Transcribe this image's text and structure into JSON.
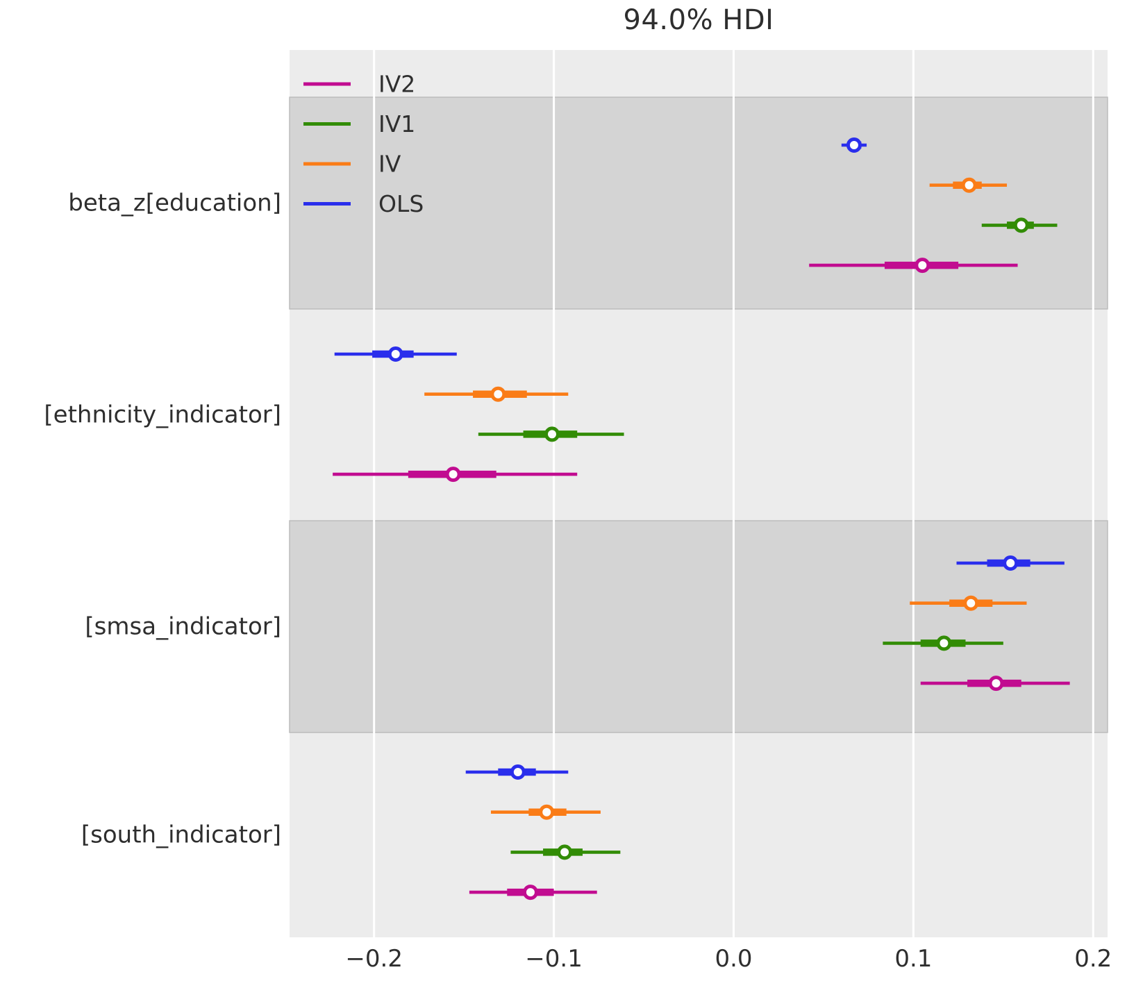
{
  "title": "94.0% HDI",
  "chart_data": {
    "type": "forest",
    "title": "94.0% HDI",
    "xlim": [
      -0.247,
      0.208
    ],
    "x_ticks": [
      -0.2,
      -0.1,
      0.0,
      0.1,
      0.2
    ],
    "x_tick_labels": [
      "−0.2",
      "−0.1",
      "0.0",
      "0.1",
      "0.2"
    ],
    "grid": "vertical-white-lines",
    "legend_position": "upper-left-inside",
    "legend": [
      {
        "label": "IV2",
        "color": "#c10c90"
      },
      {
        "label": "IV1",
        "color": "#328c06"
      },
      {
        "label": "IV",
        "color": "#fa7c17"
      },
      {
        "label": "OLS",
        "color": "#2a2eec"
      }
    ],
    "colors": {
      "OLS": "#2a2eec",
      "IV": "#fa7c17",
      "IV1": "#328c06",
      "IV2": "#c10c90"
    },
    "row_order_top_to_bottom": [
      "OLS",
      "IV",
      "IV1",
      "IV2"
    ],
    "groups": [
      {
        "label": "beta_z[education]",
        "shaded": true,
        "rows": [
          {
            "model": "OLS",
            "mean": 0.067,
            "hdi": [
              0.06,
              0.074
            ],
            "quartile": [
              0.064,
              0.071
            ]
          },
          {
            "model": "IV",
            "mean": 0.131,
            "hdi": [
              0.109,
              0.152
            ],
            "quartile": [
              0.122,
              0.138
            ]
          },
          {
            "model": "IV1",
            "mean": 0.16,
            "hdi": [
              0.138,
              0.18
            ],
            "quartile": [
              0.152,
              0.167
            ]
          },
          {
            "model": "IV2",
            "mean": 0.105,
            "hdi": [
              0.042,
              0.158
            ],
            "quartile": [
              0.084,
              0.125
            ]
          }
        ]
      },
      {
        "label": "[ethnicity_indicator]",
        "shaded": false,
        "rows": [
          {
            "model": "OLS",
            "mean": -0.188,
            "hdi": [
              -0.222,
              -0.154
            ],
            "quartile": [
              -0.201,
              -0.178
            ]
          },
          {
            "model": "IV",
            "mean": -0.131,
            "hdi": [
              -0.172,
              -0.092
            ],
            "quartile": [
              -0.145,
              -0.115
            ]
          },
          {
            "model": "IV1",
            "mean": -0.101,
            "hdi": [
              -0.142,
              -0.061
            ],
            "quartile": [
              -0.117,
              -0.087
            ]
          },
          {
            "model": "IV2",
            "mean": -0.156,
            "hdi": [
              -0.223,
              -0.087
            ],
            "quartile": [
              -0.181,
              -0.132
            ]
          }
        ]
      },
      {
        "label": "[smsa_indicator]",
        "shaded": true,
        "rows": [
          {
            "model": "OLS",
            "mean": 0.154,
            "hdi": [
              0.124,
              0.184
            ],
            "quartile": [
              0.141,
              0.165
            ]
          },
          {
            "model": "IV",
            "mean": 0.132,
            "hdi": [
              0.098,
              0.163
            ],
            "quartile": [
              0.12,
              0.144
            ]
          },
          {
            "model": "IV1",
            "mean": 0.117,
            "hdi": [
              0.083,
              0.15
            ],
            "quartile": [
              0.104,
              0.129
            ]
          },
          {
            "model": "IV2",
            "mean": 0.146,
            "hdi": [
              0.104,
              0.187
            ],
            "quartile": [
              0.13,
              0.16
            ]
          }
        ]
      },
      {
        "label": "[south_indicator]",
        "shaded": false,
        "rows": [
          {
            "model": "OLS",
            "mean": -0.12,
            "hdi": [
              -0.149,
              -0.092
            ],
            "quartile": [
              -0.131,
              -0.11
            ]
          },
          {
            "model": "IV",
            "mean": -0.104,
            "hdi": [
              -0.135,
              -0.074
            ],
            "quartile": [
              -0.114,
              -0.093
            ]
          },
          {
            "model": "IV1",
            "mean": -0.094,
            "hdi": [
              -0.124,
              -0.063
            ],
            "quartile": [
              -0.106,
              -0.084
            ]
          },
          {
            "model": "IV2",
            "mean": -0.113,
            "hdi": [
              -0.147,
              -0.076
            ],
            "quartile": [
              -0.126,
              -0.1
            ]
          }
        ]
      }
    ],
    "style": {
      "plot_bg": "#ececec",
      "band_color": "#d4d4d4",
      "band_edge": "#bcbcbc",
      "grid_color": "#ffffff",
      "text_color": "#2e2e2e",
      "marker_fill": "#fcfcfc"
    }
  }
}
